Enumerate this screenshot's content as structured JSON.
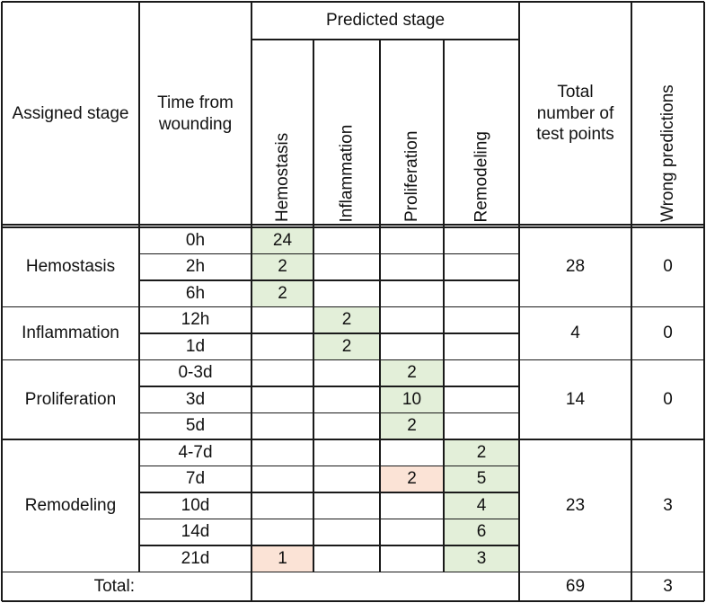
{
  "header": {
    "assigned_stage": "Assigned stage",
    "time_from_wounding": "Time from wounding",
    "predicted_stage": "Predicted stage",
    "predicted_columns": [
      "Hemostasis",
      "Inflammation",
      "Proliferation",
      "Remodeling"
    ],
    "total_test_points": "Total number of test points",
    "wrong_predictions": "Wrong predictions"
  },
  "groups": [
    {
      "stage": "Hemostasis",
      "total": "28",
      "wrong": "0",
      "rows": [
        {
          "time": "0h",
          "values": [
            "24",
            "",
            "",
            ""
          ],
          "highlight": [
            "green",
            "",
            "",
            ""
          ]
        },
        {
          "time": "2h",
          "values": [
            "2",
            "",
            "",
            ""
          ],
          "highlight": [
            "green",
            "",
            "",
            ""
          ]
        },
        {
          "time": "6h",
          "values": [
            "2",
            "",
            "",
            ""
          ],
          "highlight": [
            "green",
            "",
            "",
            ""
          ]
        }
      ]
    },
    {
      "stage": "Inflammation",
      "total": "4",
      "wrong": "0",
      "rows": [
        {
          "time": "12h",
          "values": [
            "",
            "2",
            "",
            ""
          ],
          "highlight": [
            "",
            "green",
            "",
            ""
          ]
        },
        {
          "time": "1d",
          "values": [
            "",
            "2",
            "",
            ""
          ],
          "highlight": [
            "",
            "green",
            "",
            ""
          ]
        }
      ]
    },
    {
      "stage": "Proliferation",
      "total": "14",
      "wrong": "0",
      "rows": [
        {
          "time": "0-3d",
          "values": [
            "",
            "",
            "2",
            ""
          ],
          "highlight": [
            "",
            "",
            "green",
            ""
          ]
        },
        {
          "time": "3d",
          "values": [
            "",
            "",
            "10",
            ""
          ],
          "highlight": [
            "",
            "",
            "green",
            ""
          ]
        },
        {
          "time": "5d",
          "values": [
            "",
            "",
            "2",
            ""
          ],
          "highlight": [
            "",
            "",
            "green",
            ""
          ]
        }
      ]
    },
    {
      "stage": "Remodeling",
      "total": "23",
      "wrong": "3",
      "rows": [
        {
          "time": "4-7d",
          "values": [
            "",
            "",
            "",
            "2"
          ],
          "highlight": [
            "",
            "",
            "",
            "green"
          ]
        },
        {
          "time": "7d",
          "values": [
            "",
            "",
            "2",
            "5"
          ],
          "highlight": [
            "",
            "",
            "pink",
            "green"
          ]
        },
        {
          "time": "10d",
          "values": [
            "",
            "",
            "",
            "4"
          ],
          "highlight": [
            "",
            "",
            "",
            "green"
          ]
        },
        {
          "time": "14d",
          "values": [
            "",
            "",
            "",
            "6"
          ],
          "highlight": [
            "",
            "",
            "",
            "green"
          ]
        },
        {
          "time": "21d",
          "values": [
            "1",
            "",
            "",
            "3"
          ],
          "highlight": [
            "pink",
            "",
            "",
            "green"
          ]
        }
      ]
    }
  ],
  "footer": {
    "label": "Total:",
    "total": "69",
    "wrong": "3"
  },
  "colors": {
    "correct": "#e3efd9",
    "incorrect": "#fbe3d6",
    "grid": "#1a1a1a"
  }
}
